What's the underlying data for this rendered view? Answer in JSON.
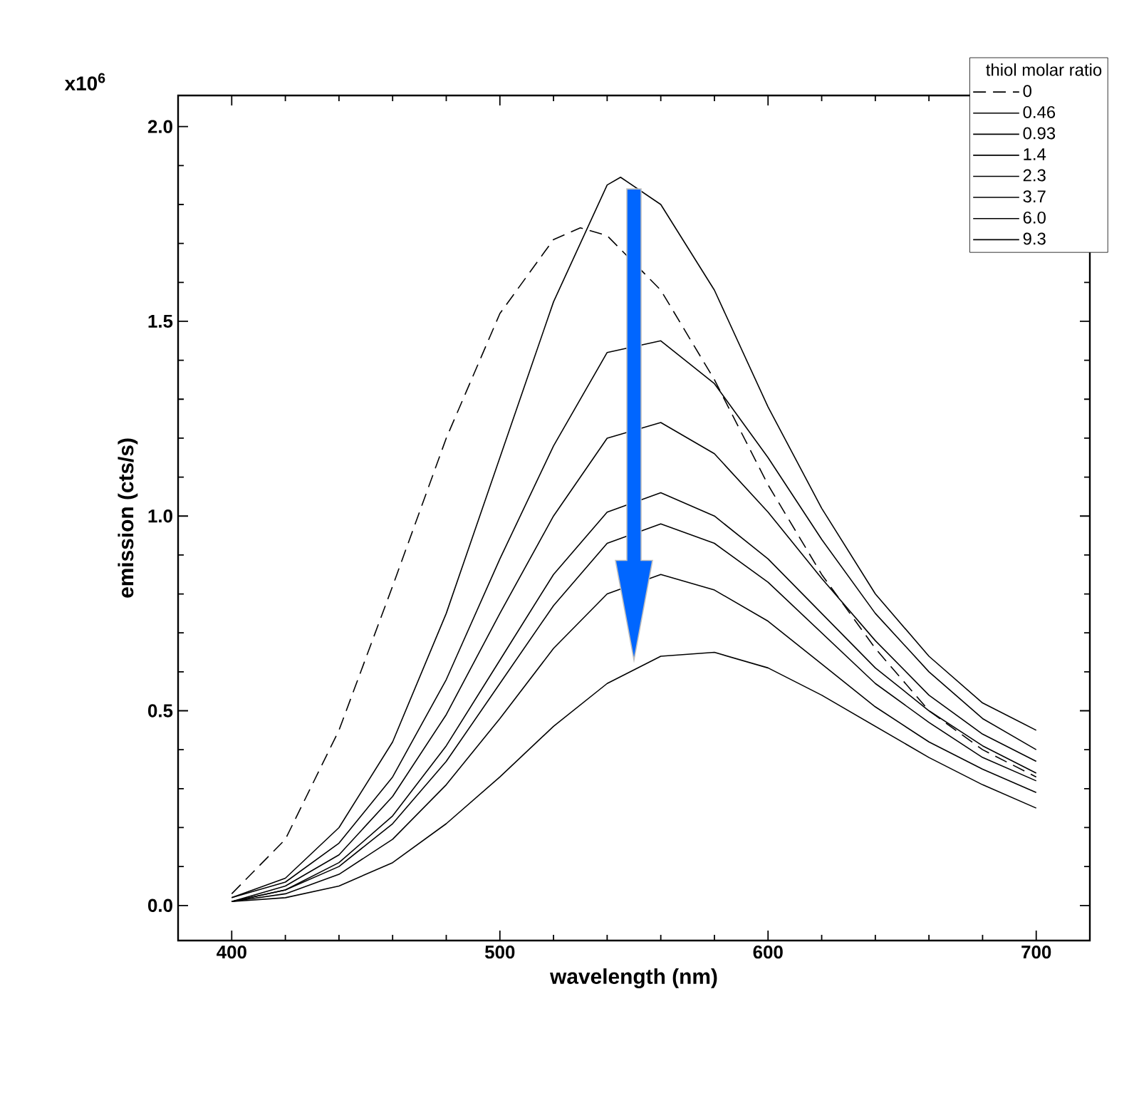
{
  "chart_data": {
    "type": "line",
    "xlabel": "wavelength (nm)",
    "ylabel": "emission (cts/s)",
    "legend_title": "thiol molar ratio",
    "annotations": [
      "x10$^{6}$"
    ],
    "xlim": [
      380,
      720
    ],
    "xticks": [
      400,
      500,
      600,
      700
    ],
    "ylim": [
      -0.09,
      2.08
    ],
    "yticks": [
      {
        "value": 0,
        "label": "0.0"
      },
      {
        "value": 0.5,
        "label": "0.5"
      },
      {
        "value": 1,
        "label": "1.0"
      },
      {
        "value": 1.5,
        "label": "1.5"
      },
      {
        "value": 2,
        "label": "2.0"
      }
    ],
    "legend": "top right",
    "grid": false,
    "marker": "none",
    "x": [
      400,
      420,
      440,
      460,
      480,
      500,
      520,
      540,
      560,
      580,
      600,
      620,
      640,
      660,
      680,
      700
    ],
    "series": [
      {
        "name": "0",
        "color": "#000000",
        "line_style": "dashed",
        "x": [
          400,
          420,
          440,
          460,
          480,
          500,
          520,
          530,
          540,
          560,
          580,
          600,
          620,
          640,
          660,
          680,
          700
        ],
        "values": [
          0.03,
          0.17,
          0.45,
          0.82,
          1.2,
          1.52,
          1.71,
          1.74,
          1.72,
          1.58,
          1.35,
          1.08,
          0.85,
          0.66,
          0.5,
          0.4,
          0.33
        ]
      },
      {
        "name": "0.46",
        "color": "#000000",
        "line_style": "solid",
        "x": [
          400,
          420,
          440,
          460,
          480,
          500,
          520,
          540,
          545,
          560,
          580,
          600,
          620,
          640,
          660,
          680,
          700
        ],
        "values": [
          0.02,
          0.07,
          0.2,
          0.42,
          0.75,
          1.15,
          1.55,
          1.85,
          1.87,
          1.8,
          1.58,
          1.28,
          1.02,
          0.8,
          0.64,
          0.52,
          0.45
        ]
      },
      {
        "name": "0.93",
        "color": "#000000",
        "line_style": "solid",
        "values": [
          0.02,
          0.06,
          0.16,
          0.33,
          0.58,
          0.89,
          1.18,
          1.42,
          1.45,
          1.34,
          1.15,
          0.94,
          0.75,
          0.6,
          0.48,
          0.4
        ]
      },
      {
        "name": "1.4",
        "color": "#000000",
        "line_style": "solid",
        "values": [
          0.01,
          0.05,
          0.13,
          0.28,
          0.49,
          0.75,
          1.0,
          1.2,
          1.24,
          1.16,
          1.01,
          0.84,
          0.68,
          0.54,
          0.44,
          0.37
        ]
      },
      {
        "name": "2.3",
        "color": "#000000",
        "line_style": "solid",
        "values": [
          0.01,
          0.04,
          0.11,
          0.23,
          0.41,
          0.63,
          0.85,
          1.01,
          1.06,
          1.0,
          0.89,
          0.75,
          0.61,
          0.5,
          0.41,
          0.34
        ]
      },
      {
        "name": "3.7",
        "color": "#000000",
        "line_style": "solid",
        "values": [
          0.01,
          0.04,
          0.1,
          0.21,
          0.37,
          0.57,
          0.77,
          0.93,
          0.98,
          0.93,
          0.83,
          0.7,
          0.57,
          0.47,
          0.38,
          0.32
        ]
      },
      {
        "name": "6.0",
        "color": "#000000",
        "line_style": "solid",
        "values": [
          0.01,
          0.03,
          0.08,
          0.17,
          0.31,
          0.48,
          0.66,
          0.8,
          0.85,
          0.81,
          0.73,
          0.62,
          0.51,
          0.42,
          0.35,
          0.29
        ]
      },
      {
        "name": "9.3",
        "color": "#000000",
        "line_style": "solid",
        "values": [
          0.01,
          0.02,
          0.05,
          0.11,
          0.21,
          0.33,
          0.46,
          0.57,
          0.64,
          0.65,
          0.61,
          0.54,
          0.46,
          0.38,
          0.31,
          0.25
        ]
      }
    ]
  }
}
